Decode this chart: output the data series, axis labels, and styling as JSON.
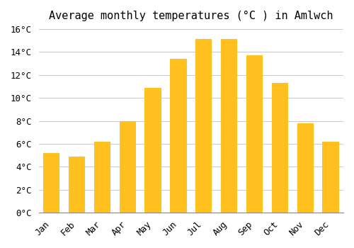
{
  "title": "Average monthly temperatures (°C ) in Amlwch",
  "months": [
    "Jan",
    "Feb",
    "Mar",
    "Apr",
    "May",
    "Jun",
    "Jul",
    "Aug",
    "Sep",
    "Oct",
    "Nov",
    "Dec"
  ],
  "values": [
    5.2,
    4.9,
    6.2,
    8.0,
    10.9,
    13.4,
    15.1,
    15.1,
    13.7,
    11.3,
    7.8,
    6.2
  ],
  "bar_color_top": "#FFC020",
  "bar_color_bottom": "#FFB000",
  "ylim": [
    0,
    16
  ],
  "yticks": [
    0,
    2,
    4,
    6,
    8,
    10,
    12,
    14,
    16
  ],
  "ytick_labels": [
    "0°C",
    "2°C",
    "4°C",
    "6°C",
    "8°C",
    "10°C",
    "12°C",
    "14°C",
    "16°C"
  ],
  "background_color": "#FFFFFF",
  "grid_color": "#CCCCCC",
  "title_fontsize": 11,
  "tick_fontsize": 9,
  "font_family": "monospace"
}
